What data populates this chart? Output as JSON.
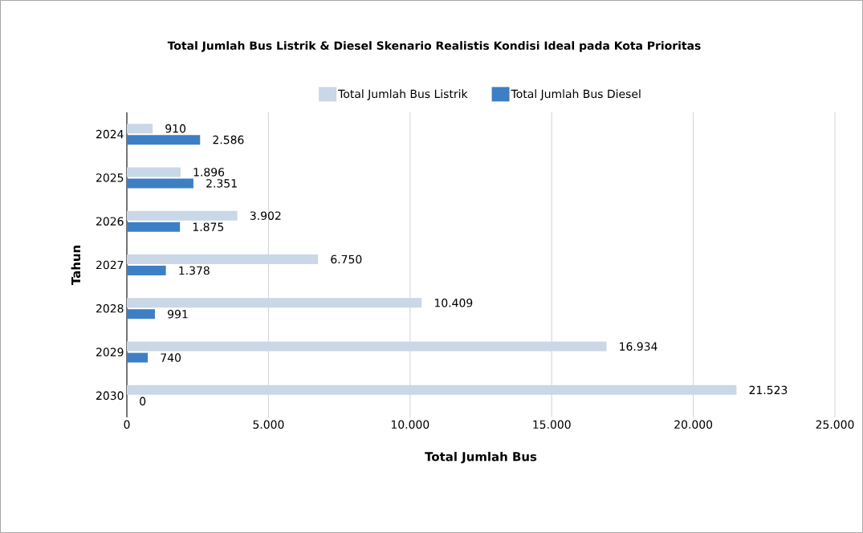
{
  "chart_data": {
    "type": "bar",
    "orientation": "horizontal",
    "title": "Total Jumlah Bus Listrik & Diesel Skenario Realistis Kondisi Ideal pada Kota Prioritas",
    "xlabel": "Total Jumlah Bus",
    "ylabel": "Tahun",
    "categories": [
      "2024",
      "2025",
      "2026",
      "2027",
      "2028",
      "2029",
      "2030"
    ],
    "series": [
      {
        "name": "Total Jumlah Bus Listrik",
        "color": "#c9d7e6",
        "values": [
          910,
          1896,
          3902,
          6750,
          10409,
          16934,
          21523
        ],
        "value_labels": [
          "910",
          "1.896",
          "3.902",
          "6.750",
          "10.409",
          "16.934",
          "21.523"
        ]
      },
      {
        "name": "Total Jumlah Bus Diesel",
        "color": "#3d7fc4",
        "values": [
          2586,
          2351,
          1875,
          1378,
          991,
          740,
          0
        ],
        "value_labels": [
          "2.586",
          "2.351",
          "1.875",
          "1.378",
          "991",
          "740",
          "0"
        ]
      }
    ],
    "xlim": [
      0,
      25000
    ],
    "xticks": [
      0,
      {
        "value": 5000,
        "label": "5.000"
      },
      {
        "value": 10000,
        "label": "10.000"
      },
      {
        "value": 15000,
        "label": "15.000"
      },
      {
        "value": 20000,
        "label": "20.000"
      },
      {
        "value": 25000,
        "label": "25.000"
      }
    ],
    "grid": "x",
    "legend": "top"
  }
}
